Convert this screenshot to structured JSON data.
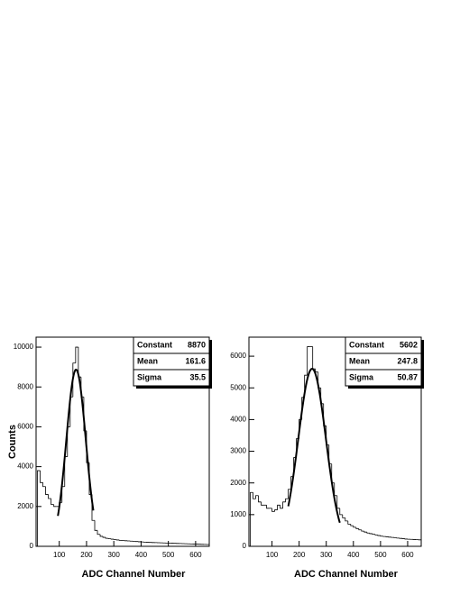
{
  "chart_data": [
    {
      "type": "histogram",
      "xlabel": "ADC Channel Number",
      "ylabel": "Counts",
      "bins": [
        20,
        30,
        40,
        50,
        60,
        70,
        80,
        90,
        100,
        110,
        120,
        130,
        140,
        150,
        160,
        170,
        180,
        190,
        200,
        210,
        220,
        230,
        240,
        250,
        260,
        270,
        280,
        290,
        300,
        310,
        320,
        330,
        340,
        350,
        360,
        370,
        380,
        390,
        400,
        410,
        420,
        430,
        440,
        450,
        460,
        470,
        480,
        490,
        500,
        510,
        520,
        530,
        540,
        550,
        560,
        570,
        580,
        590,
        600,
        610,
        620,
        630,
        640,
        650
      ],
      "counts": [
        3800,
        3200,
        3000,
        2600,
        2400,
        2100,
        2000,
        2000,
        2200,
        3000,
        4500,
        6000,
        7500,
        9200,
        10000,
        8500,
        7500,
        5800,
        4200,
        2600,
        1300,
        800,
        600,
        500,
        450,
        400,
        380,
        360,
        340,
        320,
        300,
        290,
        280,
        270,
        260,
        250,
        240,
        230,
        220,
        210,
        200,
        195,
        190,
        185,
        180,
        175,
        170,
        165,
        160,
        155,
        150,
        145,
        140,
        135,
        130,
        125,
        120,
        115,
        110,
        105,
        100,
        95,
        90
      ],
      "color": "#000000",
      "fit_color": "#000000",
      "xlim": [
        15,
        650
      ],
      "ylim": [
        0,
        10500
      ],
      "xticks": [
        100,
        200,
        300,
        400,
        500,
        600
      ],
      "yticks": [
        0,
        2000,
        4000,
        6000,
        8000,
        10000
      ],
      "fit_range": [
        95,
        225
      ],
      "stats": [
        {
          "label": "Constant",
          "value": 8870
        },
        {
          "label": "Mean",
          "value": 161.6
        },
        {
          "label": "Sigma",
          "value": 35.5
        }
      ]
    },
    {
      "type": "histogram",
      "xlabel": "ADC Channel Number",
      "bins": [
        20,
        30,
        40,
        50,
        60,
        70,
        80,
        90,
        100,
        110,
        120,
        130,
        140,
        150,
        160,
        170,
        180,
        190,
        200,
        210,
        220,
        230,
        240,
        250,
        260,
        270,
        280,
        290,
        300,
        310,
        320,
        330,
        340,
        350,
        360,
        370,
        380,
        390,
        400,
        410,
        420,
        430,
        440,
        450,
        460,
        470,
        480,
        490,
        500,
        510,
        520,
        530,
        540,
        550,
        560,
        570,
        580,
        590,
        600,
        610,
        620,
        630,
        640,
        650
      ],
      "counts": [
        1700,
        1500,
        1600,
        1400,
        1300,
        1300,
        1200,
        1200,
        1100,
        1150,
        1300,
        1200,
        1400,
        1500,
        1800,
        2200,
        2800,
        3400,
        4000,
        4700,
        5400,
        6300,
        6300,
        5600,
        5500,
        5000,
        4500,
        3800,
        3200,
        2600,
        2000,
        1600,
        1200,
        1000,
        900,
        800,
        700,
        650,
        600,
        560,
        520,
        480,
        450,
        420,
        400,
        380,
        360,
        340,
        320,
        310,
        300,
        290,
        280,
        270,
        260,
        250,
        240,
        230,
        225,
        220,
        215,
        210,
        205
      ],
      "color": "#000000",
      "fit_color": "#000000",
      "xlim": [
        15,
        650
      ],
      "ylim": [
        0,
        6600
      ],
      "xticks": [
        100,
        200,
        300,
        400,
        500,
        600
      ],
      "yticks": [
        0,
        1000,
        2000,
        3000,
        4000,
        5000,
        6000
      ],
      "fit_range": [
        160,
        350
      ],
      "stats": [
        {
          "label": "Constant",
          "value": 5602
        },
        {
          "label": "Mean",
          "value": 247.8
        },
        {
          "label": "Sigma",
          "value": 50.87
        }
      ]
    }
  ]
}
